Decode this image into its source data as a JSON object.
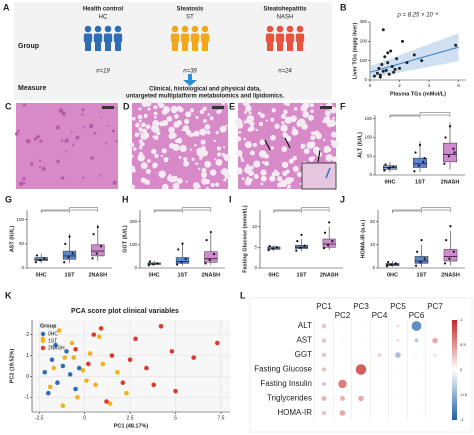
{
  "panel_labels": {
    "A": "A",
    "C": "C",
    "D": "D",
    "E": "E"
  },
  "panel_a": {
    "row_labels": [
      "Group",
      "Measure"
    ],
    "groups": [
      {
        "name": "Health control",
        "abbr": "HC",
        "n": "n=19",
        "color": "#2f6db5"
      },
      {
        "name": "Steatosis",
        "abbr": "ST",
        "n": "n=39",
        "color": "#f2a81d"
      },
      {
        "name": "Steatohepatitis",
        "abbr": "NASH",
        "n": "n=24",
        "color": "#e8533f"
      }
    ],
    "measure": [
      "Clinical, histological and physical data,",
      "untargeted multiplatform metabolomics and lipidomics."
    ]
  },
  "chart_data": [
    {
      "type": "scatter",
      "label": "B",
      "annotation": "ρ = 8.25 × 10⁻⁵",
      "x_label": "Plasma TGs (mMol/L)",
      "y_label": "Liver TGs (mg/g liver)",
      "xlim": [
        0,
        6.5
      ],
      "ylim": [
        0,
        300
      ],
      "xticks": [
        0,
        2,
        4,
        6
      ],
      "yticks": [
        0,
        100,
        200,
        300
      ],
      "color": "#222222",
      "trend_color": "#3b7dc4",
      "x": [
        0.3,
        0.5,
        0.6,
        0.7,
        0.8,
        0.9,
        1.0,
        1.1,
        1.2,
        1.3,
        1.4,
        1.5,
        1.6,
        1.8,
        2.0,
        2.2,
        2.5,
        3.0,
        3.5,
        5.8,
        0.9,
        1.2,
        0.7,
        1.7
      ],
      "values": [
        20,
        35,
        60,
        25,
        80,
        45,
        120,
        50,
        90,
        30,
        150,
        70,
        40,
        110,
        60,
        200,
        90,
        130,
        100,
        180,
        260,
        140,
        15,
        55
      ],
      "trend": {
        "x": [
          0,
          6
        ],
        "values": [
          40,
          170
        ]
      }
    },
    {
      "type": "box",
      "label": "F",
      "y_label": "ALT (IU/L)",
      "categories": [
        "0HC",
        "1ST",
        "2NASH"
      ],
      "colors": [
        "#7fa3dc",
        "#5d86d1",
        "#d08ad0"
      ],
      "ylim": [
        0,
        160
      ],
      "yticks": [
        0,
        50,
        100,
        150
      ],
      "q1": [
        15,
        20,
        35
      ],
      "median": [
        20,
        30,
        55
      ],
      "q3": [
        25,
        45,
        85
      ],
      "low": [
        8,
        8,
        15
      ],
      "high": [
        35,
        90,
        140
      ],
      "points": [
        [
          12,
          18,
          22,
          28,
          20
        ],
        [
          10,
          25,
          35,
          60,
          80,
          45
        ],
        [
          30,
          50,
          70,
          100,
          130,
          60
        ]
      ]
    },
    {
      "type": "box",
      "label": "G",
      "y_label": "AST (IU/L)",
      "categories": [
        "0HC",
        "1ST",
        "2NASH"
      ],
      "colors": [
        "#7fa3dc",
        "#5d86d1",
        "#d08ad0"
      ],
      "ylim": [
        0,
        120
      ],
      "yticks": [
        0,
        50,
        100
      ],
      "q1": [
        15,
        18,
        25
      ],
      "median": [
        18,
        25,
        35
      ],
      "q3": [
        22,
        35,
        48
      ],
      "low": [
        10,
        10,
        15
      ],
      "high": [
        30,
        70,
        90
      ],
      "points": [
        [
          12,
          16,
          20,
          26
        ],
        [
          12,
          22,
          30,
          50,
          65
        ],
        [
          20,
          30,
          45,
          70,
          85
        ]
      ]
    },
    {
      "type": "box",
      "label": "H",
      "y_label": "GGT (IU/L)",
      "categories": [
        "0HC",
        "1ST",
        "2NASH"
      ],
      "colors": [
        "#7fa3dc",
        "#5d86d1",
        "#d08ad0"
      ],
      "ylim": [
        0,
        250
      ],
      "yticks": [
        0,
        100,
        200
      ],
      "q1": [
        15,
        20,
        25
      ],
      "median": [
        18,
        28,
        40
      ],
      "q3": [
        22,
        45,
        70
      ],
      "low": [
        10,
        10,
        12
      ],
      "high": [
        30,
        110,
        160
      ],
      "points": [
        [
          12,
          16,
          20,
          28
        ],
        [
          15,
          25,
          40,
          80,
          105
        ],
        [
          20,
          35,
          60,
          120,
          155
        ]
      ]
    },
    {
      "type": "box",
      "label": "I",
      "y_label": "Fasting Glucose (mmol/L)",
      "categories": [
        "0HC",
        "1ST",
        "2NASH"
      ],
      "colors": [
        "#7fa3dc",
        "#5d86d1",
        "#d08ad0"
      ],
      "ylim": [
        0,
        14
      ],
      "yticks": [
        0,
        5,
        10
      ],
      "q1": [
        4.5,
        4.7,
        5
      ],
      "median": [
        4.8,
        5,
        5.8
      ],
      "q3": [
        5.1,
        5.5,
        7
      ],
      "low": [
        4,
        4,
        4.3
      ],
      "high": [
        5.5,
        7,
        10
      ],
      "points": [
        [
          4.3,
          4.7,
          5,
          5.3
        ],
        [
          4.2,
          4.9,
          5.4,
          6.5,
          8
        ],
        [
          4.8,
          5.5,
          6.5,
          8.5,
          11
        ]
      ]
    },
    {
      "type": "box",
      "label": "J",
      "y_label": "HOMA-IR (a.u.)",
      "categories": [
        "0HC",
        "1ST",
        "2NASH"
      ],
      "colors": [
        "#7fa3dc",
        "#5d86d1",
        "#d08ad0"
      ],
      "ylim": [
        0,
        25
      ],
      "yticks": [
        0,
        10,
        20
      ],
      "q1": [
        1,
        2,
        3
      ],
      "median": [
        1.5,
        3,
        5
      ],
      "q3": [
        2,
        5,
        8
      ],
      "low": [
        0.5,
        0.5,
        1
      ],
      "high": [
        3,
        10,
        16
      ],
      "points": [
        [
          0.8,
          1.4,
          2,
          2.6
        ],
        [
          1,
          2.5,
          4,
          7,
          12
        ],
        [
          2,
          4,
          7,
          12,
          18
        ]
      ]
    },
    {
      "type": "scatter",
      "label": "K",
      "title": "PCA score plot clinical variables",
      "legend_title": "Group",
      "x_label": "PC1 (48.17%)",
      "y_label": "PC2 (19.52%)",
      "xlim": [
        -2.9,
        8
      ],
      "ylim": [
        -1.7,
        2.7
      ],
      "xticks": [
        -2.5,
        0,
        2.5,
        5,
        7.5
      ],
      "yticks": [
        -1,
        0,
        1,
        2
      ],
      "series": [
        {
          "name": "0HC",
          "color": "#2f6db5",
          "x": [
            -2.2,
            -1.8,
            -1.5,
            -1.2,
            -1,
            -0.8,
            -0.5,
            -1.6,
            -2,
            -0.3
          ],
          "values": [
            0.2,
            0.8,
            -0.3,
            0.5,
            1.2,
            0.1,
            -0.6,
            1.5,
            -0.8,
            0.4
          ]
        },
        {
          "name": "1ST",
          "color": "#f2b21d",
          "x": [
            -2.3,
            -1.9,
            -1.4,
            -1.1,
            -0.7,
            -0.4,
            -0.1,
            0.3,
            0.6,
            1,
            1.4,
            1.8,
            2.3,
            -1.2,
            -0.6,
            0.1,
            0.8,
            -1.7
          ],
          "values": [
            1.8,
            -0.5,
            2.2,
            0.9,
            1.6,
            -1,
            0.3,
            1.1,
            -0.4,
            0.6,
            -1.3,
            0.2,
            -0.8,
            -1.4,
            0.9,
            -0.2,
            1.9,
            0.4
          ]
        },
        {
          "name": "2NASH",
          "color": "#e0392b",
          "x": [
            -0.5,
            0.2,
            0.9,
            1.5,
            2.1,
            2.8,
            3.4,
            4.2,
            5,
            6,
            7.3,
            1.2,
            2.5,
            3.8,
            0.5,
            4.8
          ],
          "values": [
            1.3,
            0.6,
            2.3,
            1,
            -0.3,
            1.8,
            0.4,
            2.4,
            -0.7,
            0.9,
            1.6,
            -1.2,
            0.8,
            -0.4,
            2,
            1.2
          ]
        }
      ]
    },
    {
      "type": "correlation",
      "label": "L",
      "columns": [
        "PC1",
        "PC2",
        "PC3",
        "PC4",
        "PC5",
        "PC6",
        "PC7"
      ],
      "rows": [
        "ALT",
        "AST",
        "GGT",
        "Fasting Glucose",
        "Fasting Insulin",
        "Triglycerides",
        "HOMA-IR"
      ],
      "values": [
        [
          0.3,
          0.1,
          0.1,
          0.1,
          0.2,
          -0.7,
          0.1
        ],
        [
          0.3,
          0.1,
          0.1,
          0.1,
          0.2,
          -0.3,
          0.4
        ],
        [
          0.3,
          0.1,
          0.1,
          0.25,
          -0.4,
          0.1,
          0.2
        ],
        [
          0.3,
          0.1,
          0.75,
          0.1,
          0.1,
          0.1,
          0.1
        ],
        [
          0.3,
          0.6,
          0.1,
          0.1,
          0.1,
          0.1,
          0.1
        ],
        [
          0.35,
          0.35,
          0.4,
          0.1,
          0.1,
          0.1,
          0.1
        ],
        [
          0.3,
          0.4,
          0.1,
          0.1,
          0.1,
          0.1,
          0.1
        ]
      ],
      "colorbar_ticks": [
        1,
        0.5,
        0,
        -0.5,
        -1
      ]
    }
  ]
}
